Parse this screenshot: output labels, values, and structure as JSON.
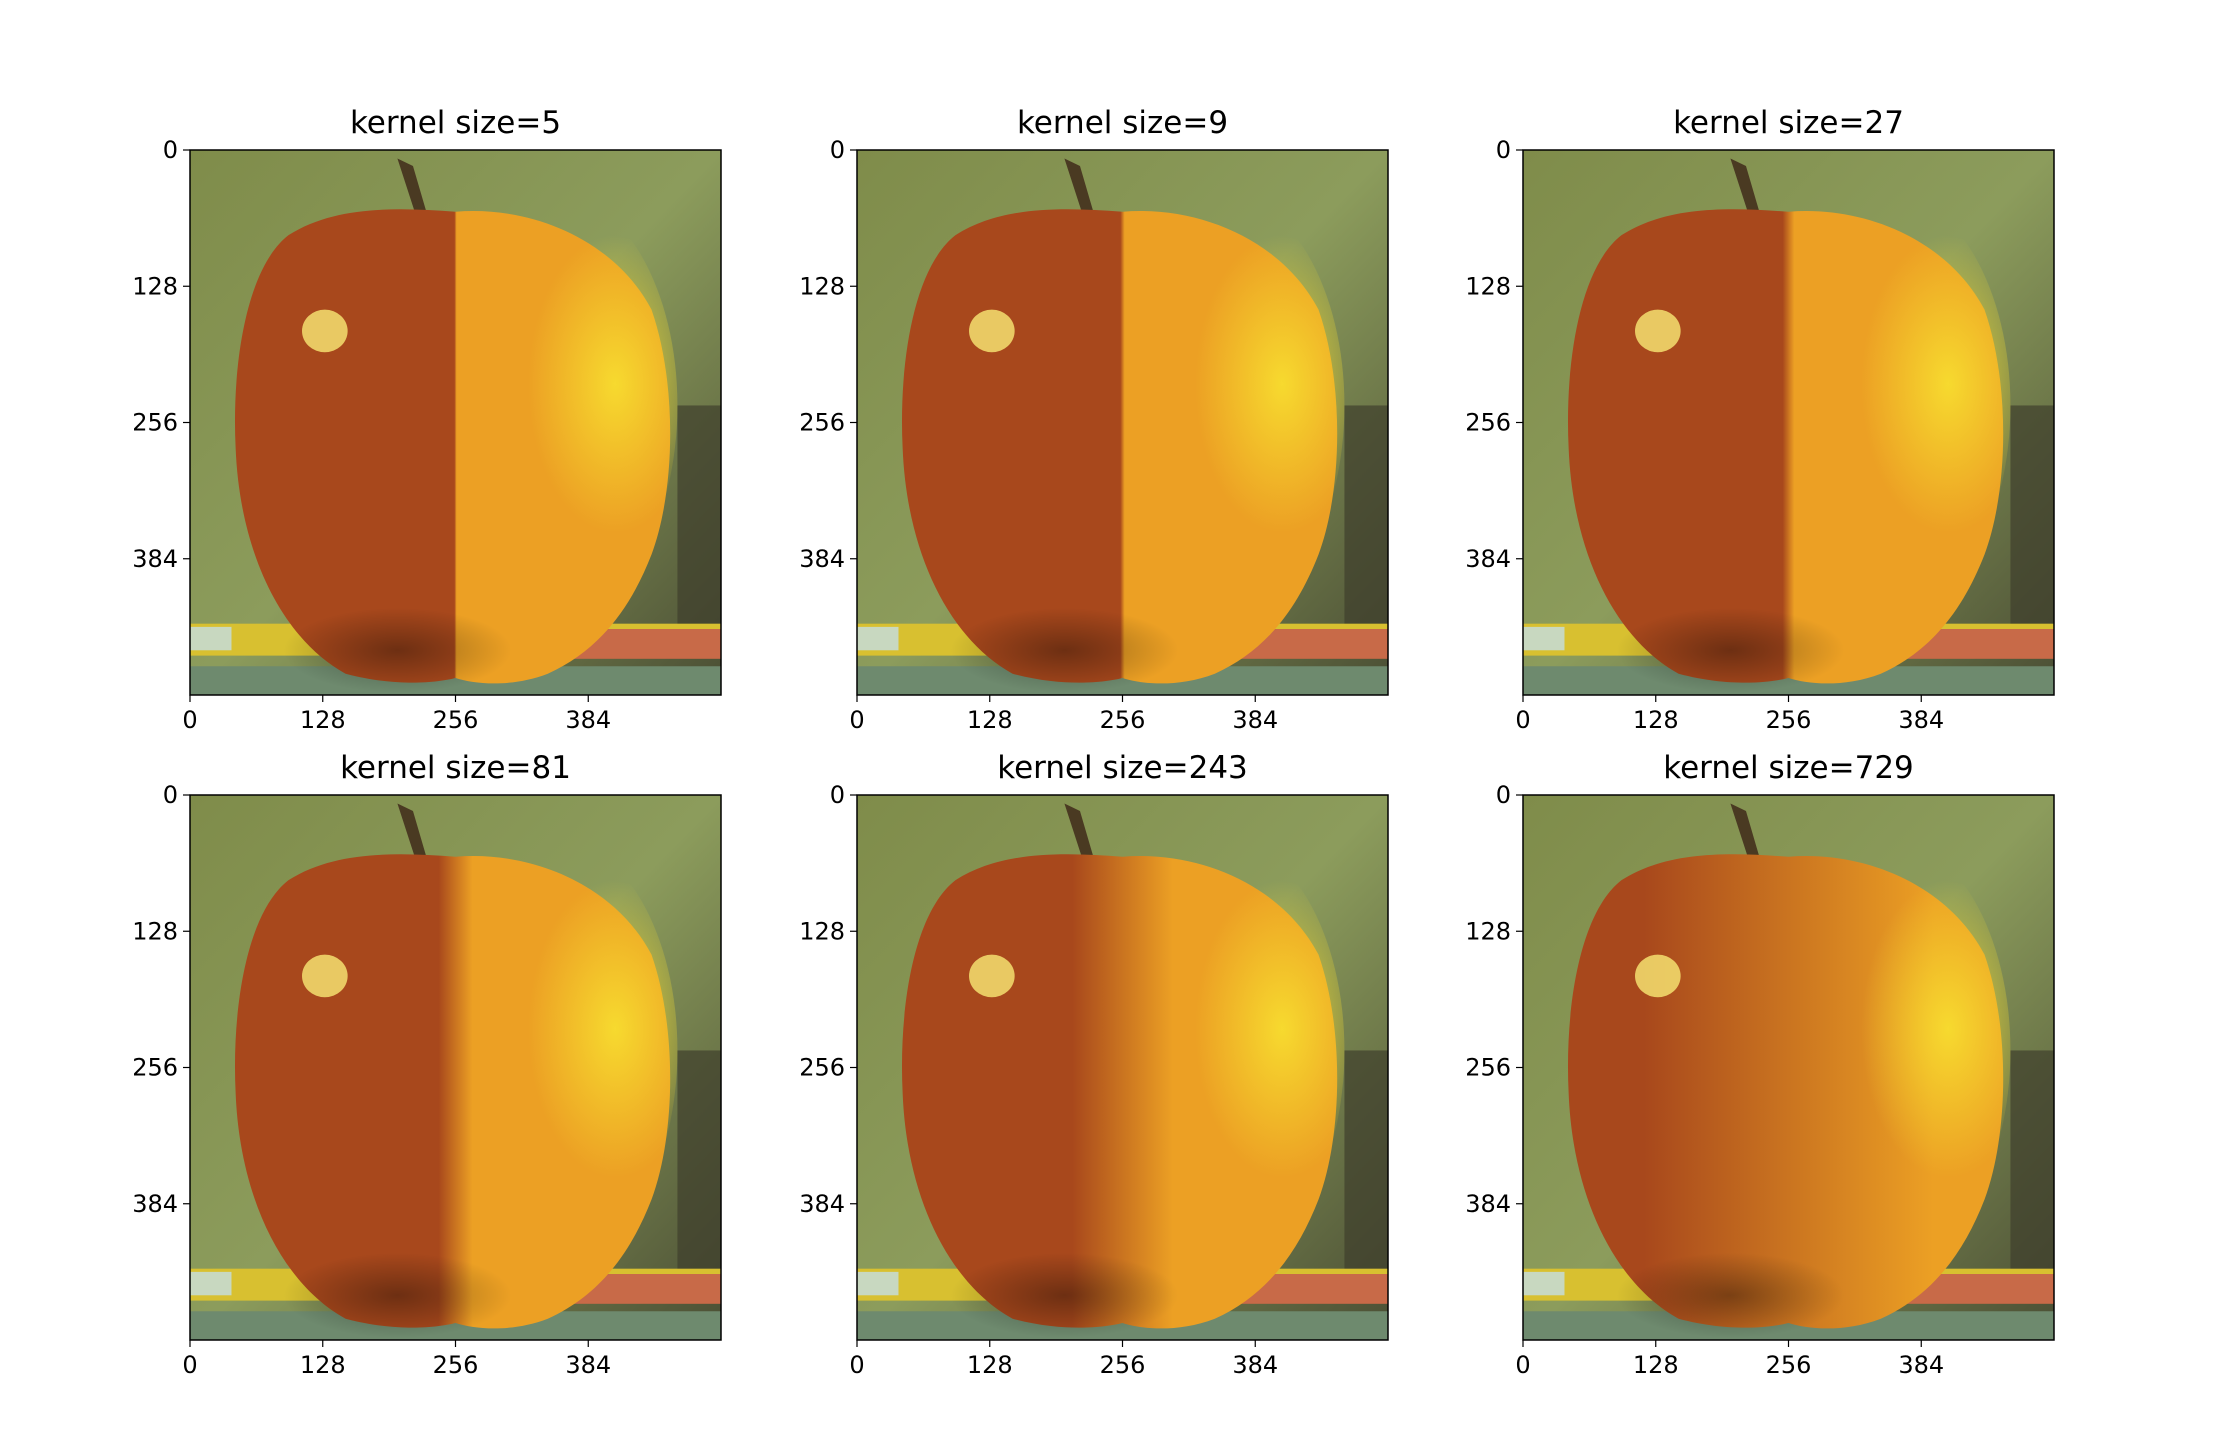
{
  "chart_data": [
    {
      "type": "heatmap",
      "content": "image",
      "title": "kernel size=5",
      "kernel_size": 5,
      "xticks": [
        "0",
        "128",
        "256",
        "384"
      ],
      "yticks": [
        "0",
        "128",
        "256",
        "384"
      ],
      "xlim": [
        0,
        512
      ],
      "ylim": [
        512,
        0
      ],
      "grid": false
    },
    {
      "type": "heatmap",
      "content": "image",
      "title": "kernel size=9",
      "kernel_size": 9,
      "xticks": [
        "0",
        "128",
        "256",
        "384"
      ],
      "yticks": [
        "0",
        "128",
        "256",
        "384"
      ],
      "xlim": [
        0,
        512
      ],
      "ylim": [
        512,
        0
      ],
      "grid": false
    },
    {
      "type": "heatmap",
      "content": "image",
      "title": "kernel size=27",
      "kernel_size": 27,
      "xticks": [
        "0",
        "128",
        "256",
        "384"
      ],
      "yticks": [
        "0",
        "128",
        "256",
        "384"
      ],
      "xlim": [
        0,
        512
      ],
      "ylim": [
        512,
        0
      ],
      "grid": false
    },
    {
      "type": "heatmap",
      "content": "image",
      "title": "kernel size=81",
      "kernel_size": 81,
      "xticks": [
        "0",
        "128",
        "256",
        "384"
      ],
      "yticks": [
        "0",
        "128",
        "256",
        "384"
      ],
      "xlim": [
        0,
        512
      ],
      "ylim": [
        512,
        0
      ],
      "grid": false
    },
    {
      "type": "heatmap",
      "content": "image",
      "title": "kernel size=243",
      "kernel_size": 243,
      "xticks": [
        "0",
        "128",
        "256",
        "384"
      ],
      "yticks": [
        "0",
        "128",
        "256",
        "384"
      ],
      "xlim": [
        0,
        512
      ],
      "ylim": [
        512,
        0
      ],
      "grid": false
    },
    {
      "type": "heatmap",
      "content": "image",
      "title": "kernel size=729",
      "kernel_size": 729,
      "xticks": [
        "0",
        "128",
        "256",
        "384"
      ],
      "yticks": [
        "0",
        "128",
        "256",
        "384"
      ],
      "xlim": [
        0,
        512
      ],
      "ylim": [
        512,
        0
      ],
      "grid": false
    }
  ],
  "colors": {
    "background": "#8c9c5c",
    "apple": "#a8481c",
    "orange": "#eca024",
    "highlight": "#f4e070"
  }
}
